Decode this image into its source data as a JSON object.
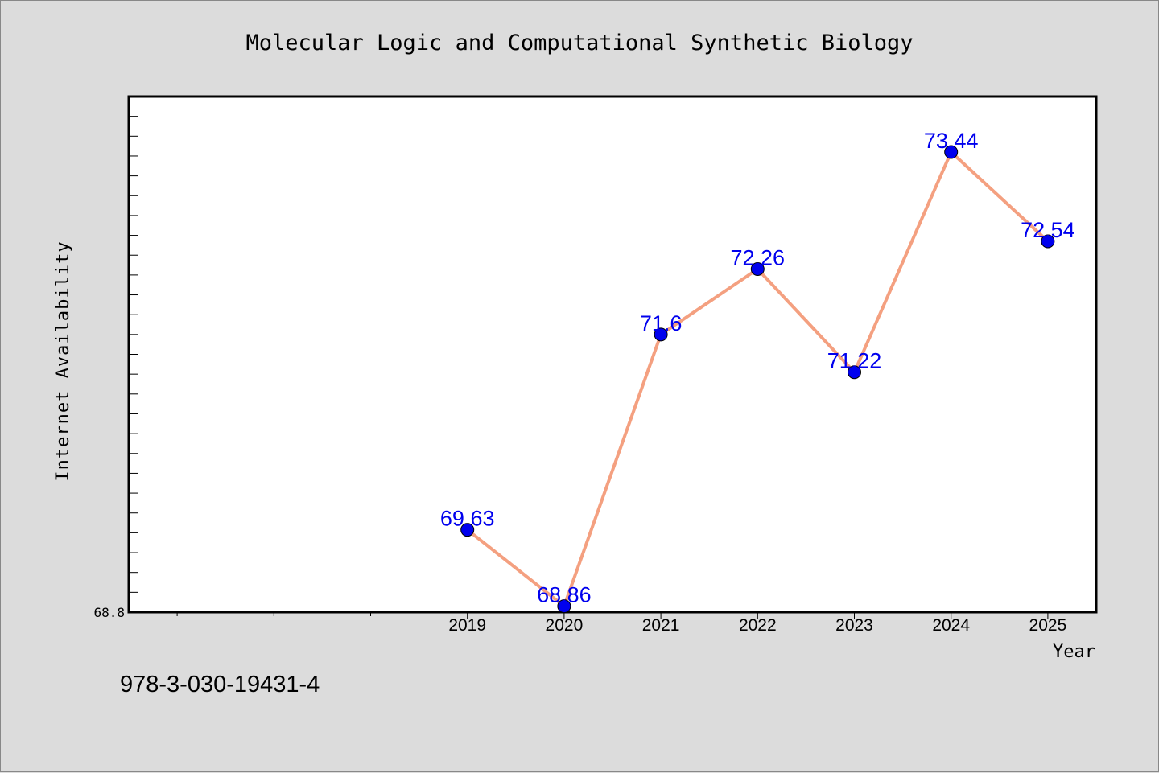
{
  "chart_data": {
    "type": "line",
    "title": "Molecular Logic and Computational Synthetic Biology",
    "xlabel": "Year",
    "ylabel": "Internet Availability",
    "x": [
      "2019",
      "2020",
      "2021",
      "2022",
      "2023",
      "2024",
      "2025"
    ],
    "series": [
      {
        "values": [
          69.63,
          68.86,
          71.6,
          72.26,
          71.22,
          73.44,
          72.54
        ],
        "labels": [
          "69.63",
          "68.86",
          "71.6",
          "72.26",
          "71.22",
          "73.44",
          "72.54"
        ]
      }
    ],
    "ylim": [
      68.8,
      74.0
    ],
    "yticks_labeled": [
      "68.8"
    ],
    "xlim": [
      2015.5,
      2025.5
    ],
    "grid": false,
    "line_color": "#f4a080",
    "marker_color": "#0000ee",
    "label_color": "#0000ee",
    "plot_background": "#ffffff",
    "figure_background": "#dcdcdc"
  },
  "footer": {
    "isbn": "978-3-030-19431-4"
  }
}
